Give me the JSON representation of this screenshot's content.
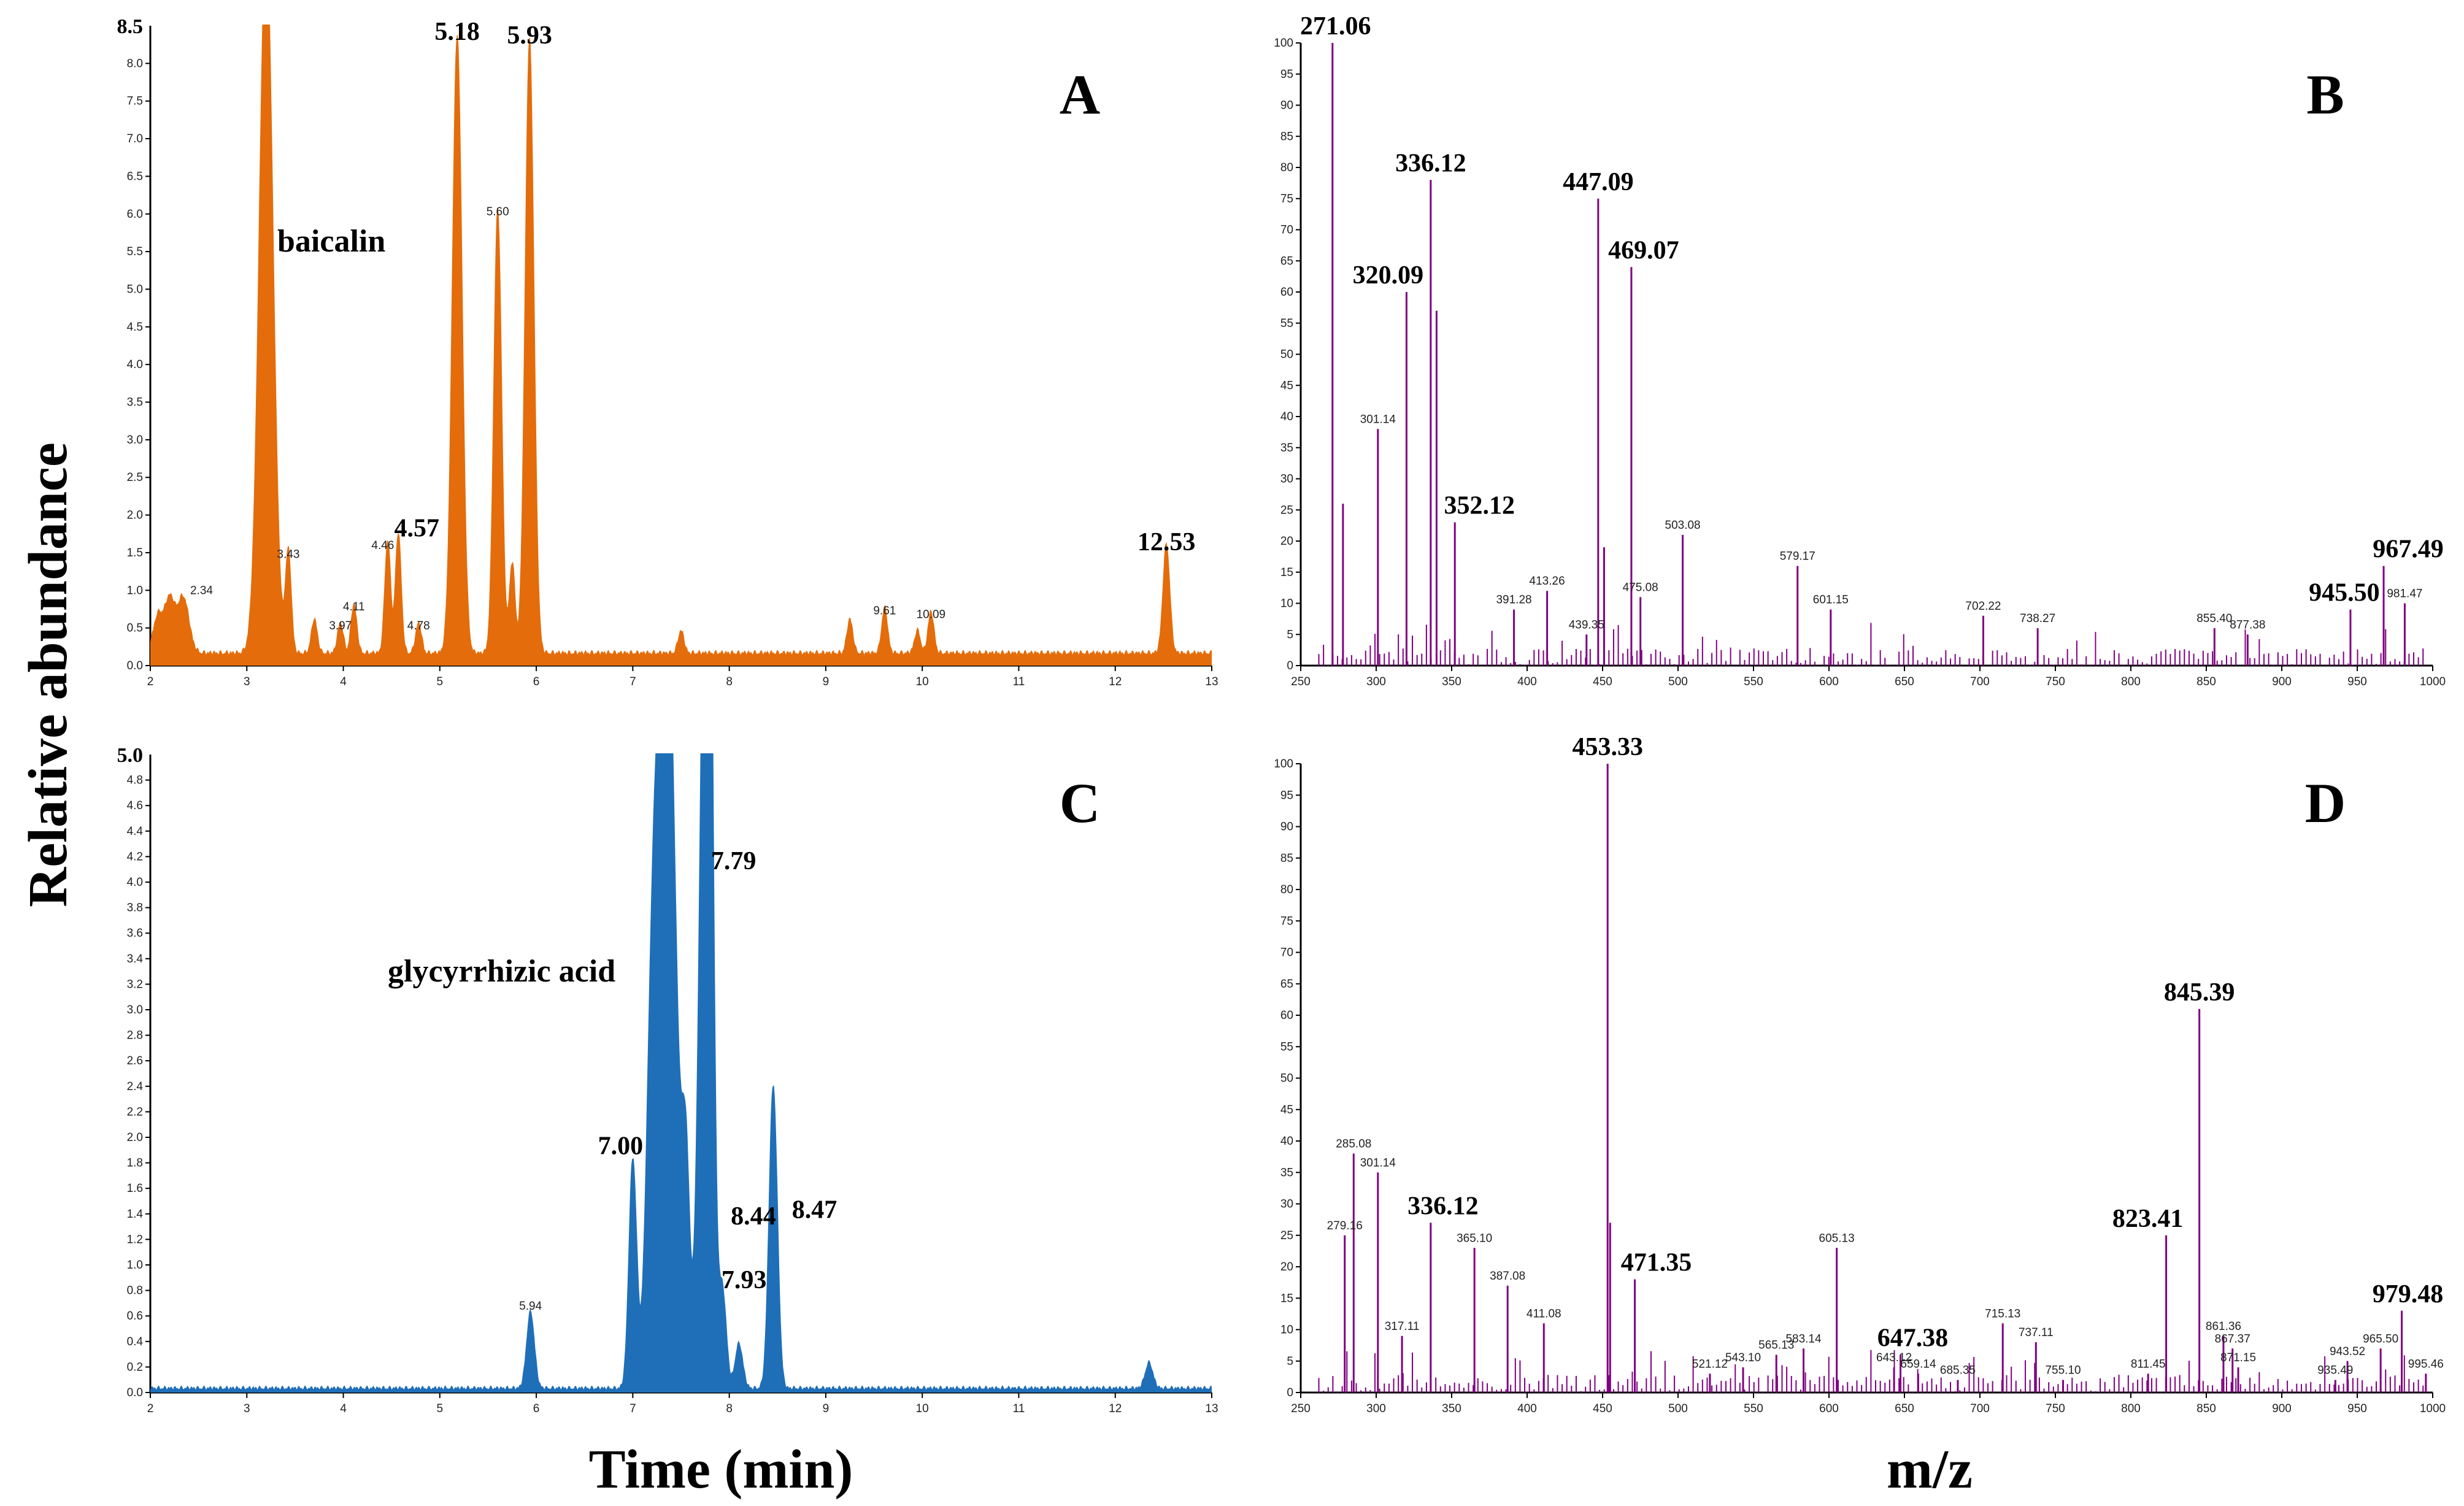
{
  "axis_titles": {
    "y": "Relative abundance",
    "x_left": "Time (min)",
    "x_right": "m/z"
  },
  "chart_data": [
    {
      "id": "A",
      "type": "line",
      "panel_letter": "A",
      "color": "#E46C0A",
      "xlabel": "Time (min)",
      "xlim": [
        2,
        13
      ],
      "ylim": [
        0,
        8.5
      ],
      "x_ticks": [
        2,
        3,
        4,
        5,
        6,
        7,
        8,
        9,
        10,
        11,
        12,
        13
      ],
      "y_ticks": [
        "0.0",
        "0.5",
        "1.0",
        "1.5",
        "2.0",
        "2.5",
        "3.0",
        "3.5",
        "4.0",
        "4.5",
        "5.0",
        "5.5",
        "6.0",
        "6.5",
        "7.0",
        "7.5",
        "8.0"
      ],
      "ymax_label": "8.5",
      "compound_label": "baicalin",
      "peaks": [
        {
          "x": 2.08,
          "y": 0.5,
          "w": 0.05
        },
        {
          "x": 2.2,
          "y": 0.7,
          "w": 0.05
        },
        {
          "x": 2.34,
          "y": 0.75,
          "w": 0.06,
          "label": "2.34"
        },
        {
          "x": 3.2,
          "y": 9.5,
          "w": 0.07
        },
        {
          "x": 3.43,
          "y": 1.35,
          "w": 0.03,
          "label": "3.43"
        },
        {
          "x": 3.7,
          "y": 0.45,
          "w": 0.03
        },
        {
          "x": 3.97,
          "y": 0.4,
          "w": 0.03,
          "label": "3.97"
        },
        {
          "x": 4.11,
          "y": 0.65,
          "w": 0.03,
          "label": "4.11"
        },
        {
          "x": 4.46,
          "y": 1.5,
          "w": 0.03,
          "label": "4.46"
        },
        {
          "x": 4.57,
          "y": 1.6,
          "w": 0.03,
          "label": "4.57",
          "big": true
        },
        {
          "x": 4.78,
          "y": 0.4,
          "w": 0.03,
          "label": "4.78"
        },
        {
          "x": 5.18,
          "y": 8.2,
          "w": 0.05,
          "label": "5.18",
          "big": true
        },
        {
          "x": 5.6,
          "y": 5.9,
          "w": 0.04,
          "label": "5.60"
        },
        {
          "x": 5.75,
          "y": 1.2,
          "w": 0.03
        },
        {
          "x": 5.93,
          "y": 8.15,
          "w": 0.045,
          "label": "5.93",
          "big": true
        },
        {
          "x": 7.5,
          "y": 0.3,
          "w": 0.03
        },
        {
          "x": 9.25,
          "y": 0.45,
          "w": 0.03
        },
        {
          "x": 9.61,
          "y": 0.6,
          "w": 0.03,
          "label": "9.61"
        },
        {
          "x": 9.95,
          "y": 0.3,
          "w": 0.03
        },
        {
          "x": 10.09,
          "y": 0.55,
          "w": 0.03,
          "label": "10.09"
        },
        {
          "x": 12.53,
          "y": 1.45,
          "w": 0.035,
          "label": "12.53",
          "big": true
        }
      ]
    },
    {
      "id": "B",
      "type": "bar",
      "panel_letter": "B",
      "color": "#800080",
      "xlabel": "m/z",
      "xlim": [
        250,
        1000
      ],
      "ylim": [
        0,
        100
      ],
      "x_ticks": [
        250,
        300,
        350,
        400,
        450,
        500,
        550,
        600,
        650,
        700,
        750,
        800,
        850,
        900,
        950,
        1000
      ],
      "y_ticks": [
        0,
        5,
        10,
        15,
        20,
        25,
        30,
        35,
        40,
        45,
        50,
        55,
        60,
        65,
        70,
        75,
        80,
        85,
        90,
        95,
        100
      ],
      "peaks": [
        {
          "x": 271.06,
          "y": 100,
          "label": "271.06",
          "big": true
        },
        {
          "x": 278,
          "y": 26
        },
        {
          "x": 301.14,
          "y": 38,
          "label": "301.14"
        },
        {
          "x": 320.09,
          "y": 60,
          "label": "320.09",
          "big": true
        },
        {
          "x": 336.12,
          "y": 78,
          "label": "336.12",
          "big": true
        },
        {
          "x": 340,
          "y": 57
        },
        {
          "x": 352.12,
          "y": 23,
          "label": "352.12",
          "big": true
        },
        {
          "x": 391.28,
          "y": 9,
          "label": "391.28"
        },
        {
          "x": 413.26,
          "y": 12,
          "label": "413.26"
        },
        {
          "x": 439.35,
          "y": 5,
          "label": "439.35"
        },
        {
          "x": 447.09,
          "y": 75,
          "label": "447.09",
          "big": true
        },
        {
          "x": 451,
          "y": 19
        },
        {
          "x": 469.07,
          "y": 64,
          "label": "469.07",
          "big": true
        },
        {
          "x": 475.08,
          "y": 11,
          "label": "475.08"
        },
        {
          "x": 503.08,
          "y": 21,
          "label": "503.08"
        },
        {
          "x": 579.17,
          "y": 16,
          "label": "579.17"
        },
        {
          "x": 601.15,
          "y": 9,
          "label": "601.15"
        },
        {
          "x": 702.22,
          "y": 8,
          "label": "702.22"
        },
        {
          "x": 738.27,
          "y": 6,
          "label": "738.27"
        },
        {
          "x": 855.4,
          "y": 6,
          "label": "855.40"
        },
        {
          "x": 877.38,
          "y": 5,
          "label": "877.38"
        },
        {
          "x": 945.5,
          "y": 9,
          "label": "945.50",
          "big": true
        },
        {
          "x": 967.49,
          "y": 16,
          "label": "967.49",
          "big": true
        },
        {
          "x": 981.47,
          "y": 10,
          "label": "981.47"
        }
      ]
    },
    {
      "id": "C",
      "type": "line",
      "panel_letter": "C",
      "color": "#1F6FB8",
      "xlabel": "Time (min)",
      "xlim": [
        2,
        13
      ],
      "ylim": [
        0,
        5.0
      ],
      "x_ticks": [
        2,
        3,
        4,
        5,
        6,
        7,
        8,
        9,
        10,
        11,
        12,
        13
      ],
      "y_ticks": [
        "0.0",
        "0.2",
        "0.4",
        "0.6",
        "0.8",
        "1.0",
        "1.2",
        "1.4",
        "1.6",
        "1.8",
        "2.0",
        "2.2",
        "2.4",
        "2.6",
        "2.8",
        "3.0",
        "3.2",
        "3.4",
        "3.6",
        "3.8",
        "4.0",
        "4.2",
        "4.4",
        "4.6",
        "4.8"
      ],
      "ymax_label": "5.0",
      "compound_label": "glycyrrhizic acid",
      "peaks": [
        {
          "x": 5.94,
          "y": 0.6,
          "w": 0.04,
          "label": "5.94"
        },
        {
          "x": 7.0,
          "y": 1.8,
          "w": 0.04,
          "label": "7.00",
          "big": true
        },
        {
          "x": 7.2,
          "y": 2.4,
          "w": 0.06
        },
        {
          "x": 7.35,
          "y": 6.5,
          "w": 0.09
        },
        {
          "x": 7.55,
          "y": 1.6,
          "w": 0.04
        },
        {
          "x": 7.75,
          "y": 6.0,
          "w": 0.06
        },
        {
          "x": 7.79,
          "y": 4.1,
          "w": 0.04,
          "label": "7.79",
          "big": true
        },
        {
          "x": 7.93,
          "y": 0.75,
          "w": 0.04,
          "label": "7.93",
          "big": true
        },
        {
          "x": 8.1,
          "y": 0.35,
          "w": 0.04
        },
        {
          "x": 8.44,
          "y": 1.25,
          "w": 0.04,
          "label": "8.44",
          "big": true
        },
        {
          "x": 8.47,
          "y": 1.3,
          "w": 0.04,
          "label": "8.47",
          "big": true
        },
        {
          "x": 12.35,
          "y": 0.2,
          "w": 0.04
        }
      ]
    },
    {
      "id": "D",
      "type": "bar",
      "panel_letter": "D",
      "color": "#800080",
      "xlabel": "m/z",
      "xlim": [
        250,
        1000
      ],
      "ylim": [
        0,
        100
      ],
      "x_ticks": [
        250,
        300,
        350,
        400,
        450,
        500,
        550,
        600,
        650,
        700,
        750,
        800,
        850,
        900,
        950,
        1000
      ],
      "y_ticks": [
        0,
        5,
        10,
        15,
        20,
        25,
        30,
        35,
        40,
        45,
        50,
        55,
        60,
        65,
        70,
        75,
        80,
        85,
        90,
        95,
        100
      ],
      "peaks": [
        {
          "x": 279.16,
          "y": 25,
          "label": "279.16"
        },
        {
          "x": 285.08,
          "y": 38,
          "label": "285.08"
        },
        {
          "x": 301.14,
          "y": 35,
          "label": "301.14"
        },
        {
          "x": 317.11,
          "y": 9,
          "label": "317.11"
        },
        {
          "x": 336.12,
          "y": 27,
          "label": "336.12",
          "big": true
        },
        {
          "x": 365.1,
          "y": 23,
          "label": "365.10"
        },
        {
          "x": 387.08,
          "y": 17,
          "label": "387.08"
        },
        {
          "x": 411.08,
          "y": 11,
          "label": "411.08"
        },
        {
          "x": 453.33,
          "y": 100,
          "label": "453.33",
          "big": true
        },
        {
          "x": 455,
          "y": 27
        },
        {
          "x": 471.35,
          "y": 18,
          "label": "471.35",
          "big": true
        },
        {
          "x": 521.12,
          "y": 3,
          "label": "521.12"
        },
        {
          "x": 543.1,
          "y": 4,
          "label": "543.10"
        },
        {
          "x": 565.13,
          "y": 6,
          "label": "565.13"
        },
        {
          "x": 583.14,
          "y": 7,
          "label": "583.14"
        },
        {
          "x": 605.13,
          "y": 23,
          "label": "605.13"
        },
        {
          "x": 643.12,
          "y": 4,
          "label": "643.12"
        },
        {
          "x": 647.38,
          "y": 6,
          "label": "647.38",
          "big": true
        },
        {
          "x": 659.14,
          "y": 3,
          "label": "659.14"
        },
        {
          "x": 685.35,
          "y": 2,
          "label": "685.35"
        },
        {
          "x": 715.13,
          "y": 11,
          "label": "715.13"
        },
        {
          "x": 737.11,
          "y": 8,
          "label": "737.11"
        },
        {
          "x": 755.1,
          "y": 2,
          "label": "755.10"
        },
        {
          "x": 811.45,
          "y": 3,
          "label": "811.45"
        },
        {
          "x": 823.41,
          "y": 25,
          "label": "823.41",
          "big": true
        },
        {
          "x": 845.39,
          "y": 61,
          "label": "845.39",
          "big": true
        },
        {
          "x": 861.36,
          "y": 9,
          "label": "861.36"
        },
        {
          "x": 867.37,
          "y": 7,
          "label": "867.37"
        },
        {
          "x": 871.15,
          "y": 4,
          "label": "871.15"
        },
        {
          "x": 935.49,
          "y": 2,
          "label": "935.49"
        },
        {
          "x": 943.52,
          "y": 5,
          "label": "943.52"
        },
        {
          "x": 965.5,
          "y": 7,
          "label": "965.50"
        },
        {
          "x": 979.48,
          "y": 13,
          "label": "979.48",
          "big": true
        },
        {
          "x": 995.46,
          "y": 3,
          "label": "995.46"
        }
      ]
    }
  ]
}
